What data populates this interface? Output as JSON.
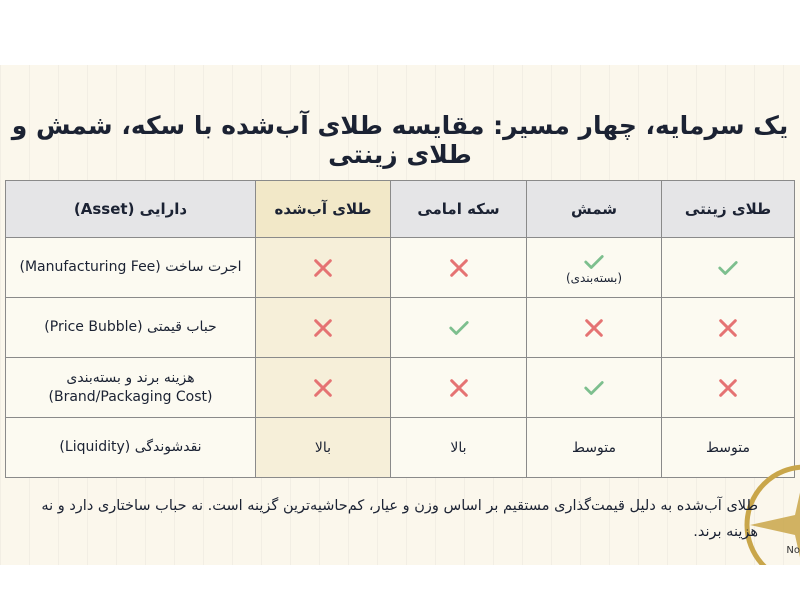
{
  "title": "یک سرمایه، چهار مسیر: مقایسه طلای آب‌شده با سکه، شمش و طلای زینتی",
  "table": {
    "headers": [
      "دارایی (Asset)",
      "طلای آب‌شده",
      "سکه امامی",
      "شمش",
      "طلای زینتی"
    ],
    "highlighted_column": "طلای آب‌شده",
    "rows": [
      {
        "asset": "اجرت ساخت (Manufacturing Fee)",
        "melted": "cross",
        "coin": "cross",
        "ingot": "check",
        "ingot_note": "(بسته‌بندی)",
        "jewelry": "check"
      },
      {
        "asset": "حباب قیمتی (Price Bubble)",
        "melted": "cross",
        "coin": "check",
        "ingot": "cross",
        "jewelry": "cross"
      },
      {
        "asset": "هزینه برند و بسته‌بندی",
        "asset_sub": "(Brand/Packaging Cost)",
        "melted": "cross",
        "coin": "cross",
        "ingot": "check",
        "jewelry": "cross"
      },
      {
        "asset": "نقدشوندگی (Liquidity)",
        "melted": "بالا",
        "coin": "بالا",
        "ingot": "متوسط",
        "jewelry": "متوسط"
      }
    ]
  },
  "note": "طلای آب‌شده به دلیل قیمت‌گذاری مستقیم بر اساس وزن و عیار، کم‌حاشیه‌ترین گزینه است. نه حباب ساختاری دارد و نه هزینه برند.",
  "logo_text": "No",
  "colors": {
    "check": "#7dbf8e",
    "cross": "#e57373",
    "header": "#e5e5e7",
    "highlight": "#f2e8c8",
    "background": "#fbf7ec",
    "title": "#1b2233"
  }
}
